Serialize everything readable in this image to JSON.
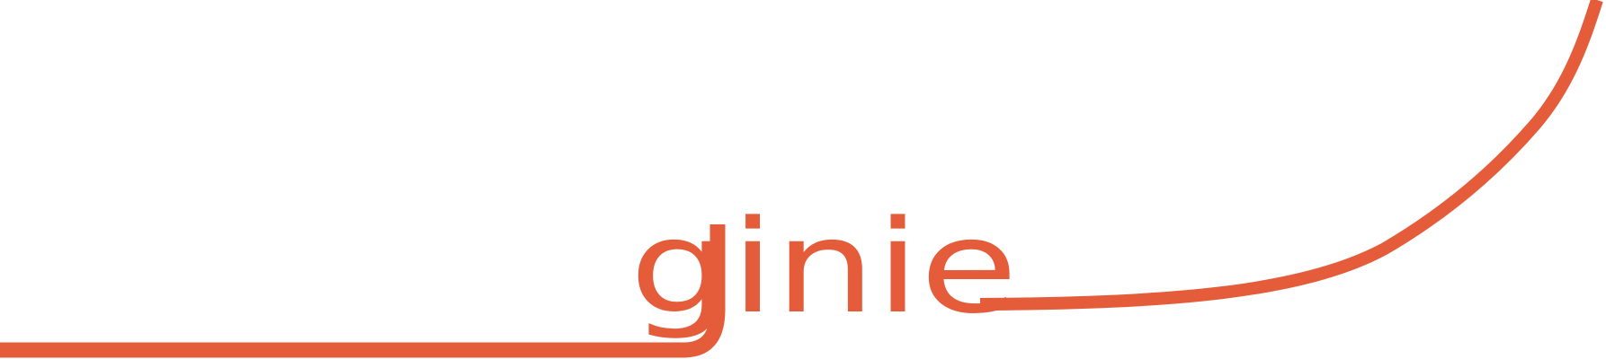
{
  "logo": {
    "wordmark": "ginie",
    "brand_color": "#E45C3A",
    "background_color": "#FFFFFF"
  }
}
